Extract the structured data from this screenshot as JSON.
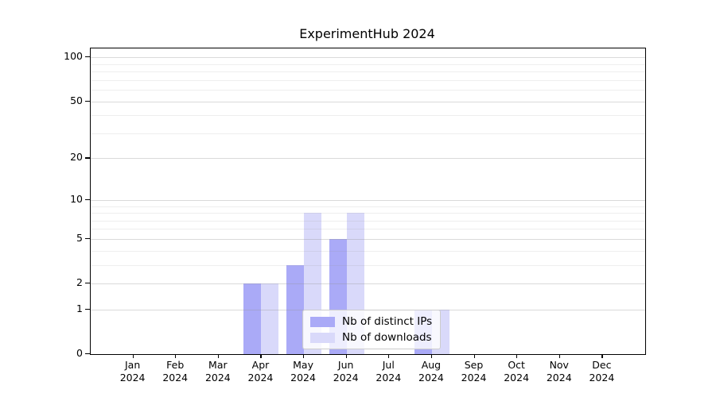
{
  "title": "ExperimentHub 2024",
  "chart_data": {
    "type": "bar",
    "title": "ExperimentHub 2024",
    "scale": "log1p",
    "categories": [
      "Jan",
      "Feb",
      "Mar",
      "Apr",
      "May",
      "Jun",
      "Jul",
      "Aug",
      "Sep",
      "Oct",
      "Nov",
      "Dec"
    ],
    "year": "2024",
    "series": [
      {
        "name": "Nb of distinct IPs",
        "color": "#aaaaf7",
        "values": [
          0,
          0,
          0,
          2,
          3,
          5,
          0,
          1,
          0,
          0,
          0,
          0
        ]
      },
      {
        "name": "Nb of downloads",
        "color": "#d9d9fa",
        "values": [
          0,
          0,
          0,
          2,
          8,
          8,
          0,
          1,
          0,
          0,
          0,
          0
        ]
      }
    ],
    "xlabel": "",
    "ylabel": "",
    "ylim": [
      0,
      115
    ],
    "yticks": [
      0,
      1,
      2,
      5,
      10,
      20,
      50,
      100
    ],
    "minor_gridlines": [
      3,
      4,
      6,
      7,
      8,
      9,
      30,
      40,
      60,
      70,
      80,
      90
    ],
    "grid": true,
    "legend_position": "bottom-center"
  }
}
